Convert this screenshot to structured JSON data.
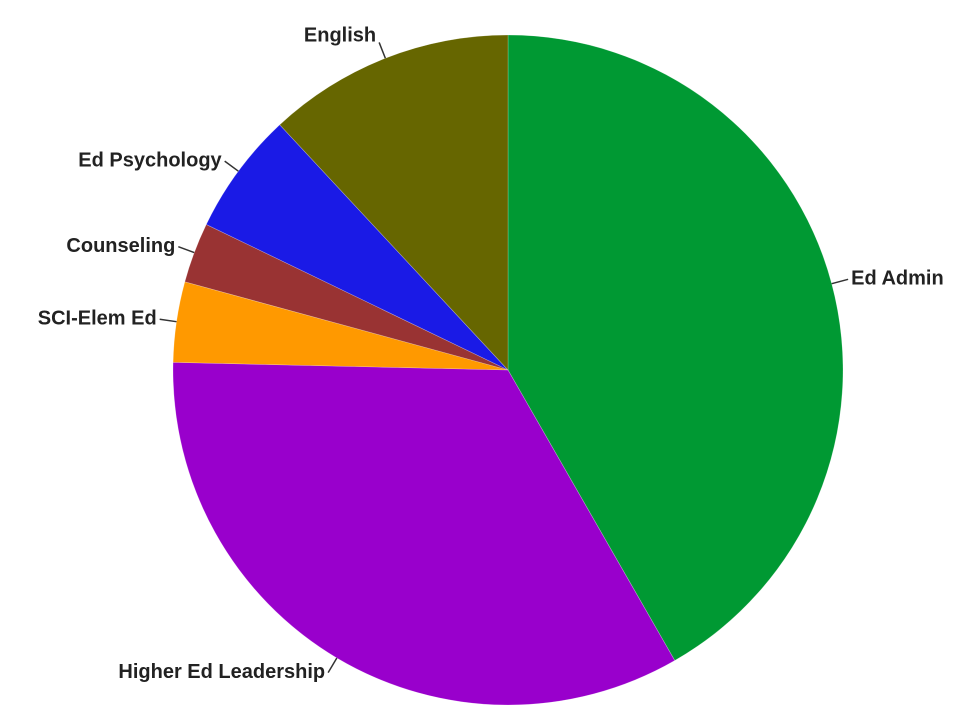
{
  "chart_data": {
    "type": "pie",
    "title": "",
    "start_angle_deg": 0,
    "direction": "clockwise",
    "slices": [
      {
        "label": "Ed Admin",
        "value": 43.0,
        "color": "#009933",
        "label_side": "right"
      },
      {
        "label": "Higher Ed Leadership",
        "value": 34.7,
        "color": "#9900cc",
        "label_side": "left"
      },
      {
        "label": "SCI-Elem Ed",
        "value": 4.0,
        "color": "#ff9900",
        "label_side": "left"
      },
      {
        "label": "Counseling",
        "value": 3.0,
        "color": "#993333",
        "label_side": "left"
      },
      {
        "label": "Ed Psychology",
        "value": 6.1,
        "color": "#1a1ae6",
        "label_side": "left"
      },
      {
        "label": "English",
        "value": 12.3,
        "color": "#666600",
        "label_side": "left"
      }
    ]
  }
}
